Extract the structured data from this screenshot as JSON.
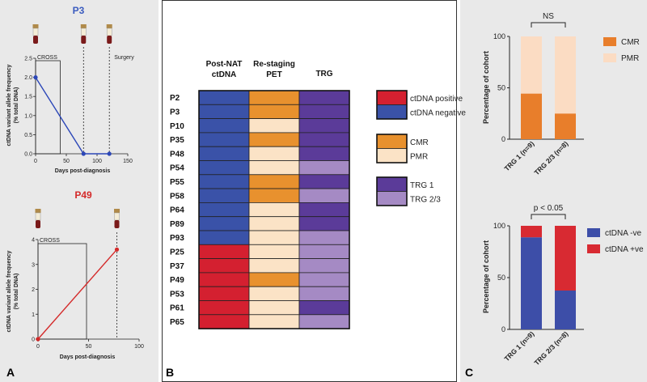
{
  "panel_labels": {
    "a": "A",
    "b": "B",
    "c": "C"
  },
  "colors": {
    "panel_bg": "#e9e9e9",
    "ctdna_pos": "#d42030",
    "ctdna_neg": "#3a52a8",
    "cmr": "#e8912e",
    "pmr": "#fbe3c6",
    "trg1": "#5b3b99",
    "trg23": "#a58ac4",
    "p3_line": "#2c47b8",
    "p49_line": "#d42a2a",
    "cmr_bar": "#e87e2b",
    "pmr_bar": "#fbdcc3",
    "neg_bar": "#3d4ea8",
    "pos_bar": "#d82a32"
  },
  "chart_data": [
    {
      "type": "line",
      "id": "p3",
      "title": "P3",
      "xlabel": "Days post-diagnosis",
      "ylabel": "ctDNA variant allele frequency (% total DNA)",
      "xlim": [
        0,
        150
      ],
      "ylim": [
        0,
        2.5
      ],
      "xticks": [
        "0",
        "50",
        "100",
        "150"
      ],
      "yticks": [
        "0.0",
        "0.5",
        "1.0",
        "1.5",
        "2.0",
        "2.5"
      ],
      "x": [
        0,
        78,
        120
      ],
      "y": [
        2.0,
        0.0,
        0.0
      ],
      "box": {
        "label": "CROSS",
        "x_start": 0,
        "x_end": 40
      },
      "vlines": [
        {
          "x": 78,
          "label": ""
        },
        {
          "x": 120,
          "label": "Surgery"
        }
      ],
      "tube_x": [
        0,
        78,
        120
      ]
    },
    {
      "type": "line",
      "id": "p49",
      "title": "P49",
      "xlabel": "Days post-diagnosis",
      "ylabel": "ctDNA variant allele frequency (% total DNA)",
      "xlim": [
        0,
        100
      ],
      "ylim": [
        0,
        4
      ],
      "xticks": [
        "0",
        "50",
        "100"
      ],
      "yticks": [
        "0",
        "1",
        "2",
        "3",
        "4"
      ],
      "x": [
        0,
        78
      ],
      "y": [
        0.0,
        3.6
      ],
      "box": {
        "label": "CROSS",
        "x_start": 0,
        "x_end": 48
      },
      "vlines": [
        {
          "x": 78,
          "label": ""
        }
      ],
      "tube_x": [
        0,
        78
      ]
    },
    {
      "type": "heatmap",
      "id": "heatmap",
      "columns": [
        [
          "Post-NAT",
          "ctDNA"
        ],
        [
          "Re-staging",
          "PET"
        ],
        [
          "TRG"
        ]
      ],
      "rows": [
        "P2",
        "P3",
        "P10",
        "P35",
        "P48",
        "P54",
        "P55",
        "P58",
        "P64",
        "P89",
        "P93",
        "P25",
        "P37",
        "P49",
        "P53",
        "P61",
        "P65"
      ],
      "ctdna": [
        "neg",
        "neg",
        "neg",
        "neg",
        "neg",
        "neg",
        "neg",
        "neg",
        "neg",
        "neg",
        "neg",
        "pos",
        "pos",
        "pos",
        "pos",
        "pos",
        "pos"
      ],
      "pet": [
        "CMR",
        "CMR",
        "PMR",
        "CMR",
        "PMR",
        "PMR",
        "CMR",
        "CMR",
        "PMR",
        "PMR",
        "PMR",
        "PMR",
        "PMR",
        "CMR",
        "PMR",
        "PMR",
        "PMR"
      ],
      "trg": [
        "1",
        "1",
        "1",
        "1",
        "1",
        "23",
        "1",
        "23",
        "1",
        "1",
        "23",
        "23",
        "23",
        "23",
        "23",
        "1",
        "23"
      ],
      "legend": [
        [
          {
            "key": "pos",
            "label": "ctDNA positive"
          },
          {
            "key": "neg",
            "label": "ctDNA negative"
          }
        ],
        [
          {
            "key": "CMR",
            "label": "CMR"
          },
          {
            "key": "PMR",
            "label": "PMR"
          }
        ],
        [
          {
            "key": "1",
            "label": "TRG 1"
          },
          {
            "key": "23",
            "label": "TRG 2/3"
          }
        ]
      ]
    },
    {
      "type": "bar",
      "id": "c_top",
      "ylabel": "Percentage of cohort",
      "categories": [
        "TRG 1 (n=9)",
        "TRG 2/3 (n=8)"
      ],
      "series": [
        {
          "name": "CMR",
          "values": [
            44.4,
            25.0
          ]
        },
        {
          "name": "PMR",
          "values": [
            55.6,
            75.0
          ]
        }
      ],
      "ylim": [
        0,
        100
      ],
      "yticks": [
        "0",
        "50",
        "100"
      ],
      "significance": "NS"
    },
    {
      "type": "bar",
      "id": "c_bottom",
      "ylabel": "Percentage of cohort",
      "categories": [
        "TRG 1 (n=9)",
        "TRG 2/3 (n=8)"
      ],
      "series": [
        {
          "name": "ctDNA -ve",
          "values": [
            88.9,
            37.5
          ]
        },
        {
          "name": "ctDNA +ve",
          "values": [
            11.1,
            62.5
          ]
        }
      ],
      "ylim": [
        0,
        100
      ],
      "yticks": [
        "0",
        "50",
        "100"
      ],
      "significance": "p < 0.05"
    }
  ]
}
